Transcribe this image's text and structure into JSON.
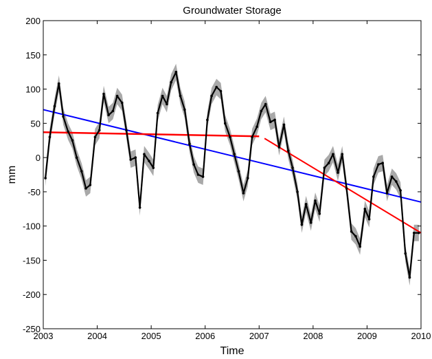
{
  "chart_data": {
    "type": "line",
    "title": "Groundwater Storage",
    "xlabel": "Time",
    "ylabel": "mm",
    "xlim": [
      2003,
      2010
    ],
    "ylim": [
      -250,
      200
    ],
    "xticks": [
      "2003",
      "2004",
      "2005",
      "2006",
      "2007",
      "2008",
      "2009",
      "2010"
    ],
    "yticks": [
      "-250",
      "-200",
      "-150",
      "-100",
      "-50",
      "0",
      "50",
      "100",
      "150",
      "200"
    ],
    "grid": false,
    "legend": "none",
    "colors": {
      "storage": "#000000",
      "uncertainty_band": "#a9a9a9",
      "trend_full": "#0000ff",
      "trend_segments": "#ff0000"
    },
    "series": [
      {
        "x": [
          2003.04,
          2003.12,
          2003.21,
          2003.29,
          2003.37,
          2003.46,
          2003.54,
          2003.62,
          2003.71,
          2003.79,
          2003.87,
          2003.96,
          2004.04,
          2004.12,
          2004.21,
          2004.29,
          2004.37,
          2004.46,
          2004.54,
          2004.62,
          2004.71,
          2004.79,
          2004.87,
          2004.96,
          2005.04,
          2005.12,
          2005.21,
          2005.29,
          2005.37,
          2005.46,
          2005.54,
          2005.62,
          2005.71,
          2005.79,
          2005.87,
          2005.96,
          2006.04,
          2006.12,
          2006.21,
          2006.29,
          2006.37,
          2006.46,
          2006.54,
          2006.62,
          2006.71,
          2006.79,
          2006.87,
          2006.96,
          2007.04,
          2007.12,
          2007.21,
          2007.29,
          2007.37,
          2007.46,
          2007.54,
          2007.62,
          2007.71,
          2007.79,
          2007.87,
          2007.96,
          2008.04,
          2008.12,
          2008.21,
          2008.29,
          2008.37,
          2008.46,
          2008.54,
          2008.62,
          2008.71,
          2008.79,
          2008.87,
          2008.96,
          2009.04,
          2009.12,
          2009.21,
          2009.29,
          2009.37,
          2009.46,
          2009.54,
          2009.62,
          2009.71,
          2009.79,
          2009.87,
          2009.96
        ],
        "values": [
          -30,
          30,
          75,
          108,
          60,
          38,
          25,
          0,
          -20,
          -45,
          -40,
          30,
          40,
          93,
          62,
          68,
          90,
          80,
          40,
          -3,
          0,
          -73,
          5,
          -5,
          -15,
          65,
          90,
          78,
          110,
          125,
          90,
          70,
          20,
          -10,
          -25,
          -28,
          55,
          90,
          103,
          97,
          50,
          30,
          5,
          -20,
          -52,
          -30,
          30,
          45,
          68,
          78,
          52,
          55,
          15,
          48,
          10,
          -15,
          -50,
          -98,
          -68,
          -95,
          -63,
          -82,
          -15,
          -8,
          5,
          -22,
          5,
          -45,
          -108,
          -115,
          -130,
          -75,
          -90,
          -28,
          -10,
          -8,
          -52,
          -28,
          -35,
          -48,
          -140,
          -175,
          -110,
          -110
        ],
        "band_halfwidth": 12
      }
    ],
    "trend_lines": [
      {
        "x": [
          2003.0,
          2010.0
        ],
        "y": [
          70,
          -65
        ]
      },
      {
        "x": [
          2003.0,
          2007.0
        ],
        "y": [
          37,
          31
        ]
      },
      {
        "x": [
          2007.1,
          2010.0
        ],
        "y": [
          28,
          -110
        ]
      }
    ]
  }
}
